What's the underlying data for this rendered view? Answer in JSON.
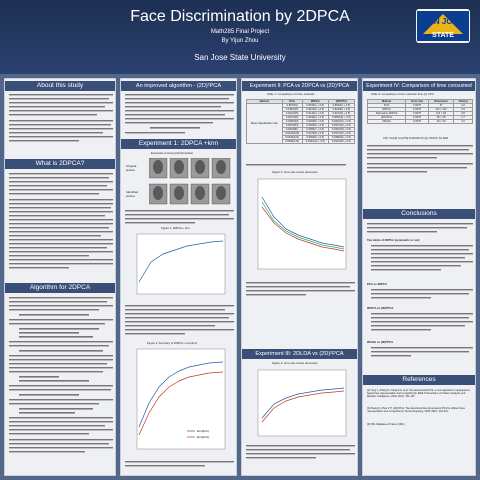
{
  "header": {
    "title": "Face Discrimination by 2DPCA",
    "course": "Math285 Final Project",
    "author": "By Yijun Zhou",
    "university": "San Jose State University",
    "logo": {
      "line1": "SAN JOSE",
      "line2": "STATE"
    }
  },
  "sections": {
    "about": "About this study",
    "what": "What is 2DPCA?",
    "algo": "Algorithm for 2DPCA",
    "improved": "An improved algorithm - (2D)²PCA",
    "exp1": "Experiment 1: 2DPCA +knn",
    "exp2": "Experiment II: PCA vs 2DPCA  vs (2D)²PCA",
    "exp3": "Experiment III: 2DLDA  vs (2D)²PCA",
    "exp4": "Experiment IV: Comparison of time consumed",
    "conclusions": "Conclusions",
    "references": "References"
  },
  "exp1": {
    "original_label": "Original\npicture",
    "identified_label": "Identified\npicture",
    "faces_caption": "Examples of wrong Discrimination",
    "fig1_caption": "Figure 1: 2DPCA + knn",
    "fig2_caption": "Figure 2: Accuracy of 2DPCA + knn(k=1)",
    "legend": [
      "knn(k=1)",
      "knn(k=3)"
    ]
  },
  "exp2": {
    "table_caption": "Table 1: Comparison of three methods",
    "headers": [
      "Method",
      "PCA",
      "2DPCA",
      "(2D)²PCA"
    ],
    "row_label": "Mean classification rate",
    "rows": [
      [
        "0.8972(9)",
        "0.8916(1 + 0.5)",
        "0.8690(3 + 0.5)"
      ],
      [
        "0.9160(16)",
        "0.9100(2 + 0.5)",
        "0.9230(6 + 0.5)"
      ],
      [
        "0.9222(25)",
        "0.9144(3 + 0.5)",
        "0.9272(9 + 0.5)"
      ],
      [
        "0.9276(36)",
        "0.9230(4 + 0.5)",
        "0.9260(11 + 0.5)"
      ],
      [
        "0.9336(49)",
        "0.9290(5 + 0.5)",
        "0.9292(14 + 0.5)"
      ],
      [
        "0.9370(64)",
        "0.9322(6 + 0.5)",
        "0.9370(16 + 0.5)"
      ],
      [
        "0.9403(81)",
        "0.9356(7 + 0.5)",
        "0.9333(18 + 0.5)"
      ],
      [
        "0.9416(100)",
        "0.9373(8 + 0.5)",
        "0.9372(20 + 0.5)"
      ],
      [
        "0.9440(121)",
        "0.9390(9 + 0.5)",
        "0.9389(22 + 0.5)"
      ],
      [
        "0.9483(144)",
        "0.9422(10 + 0.5)",
        "0.9410(25 + 0.5)"
      ]
    ],
    "fig_caption": "Figure 3: error rate versus dimension",
    "fig2_caption": "Figure 4: error rate versus dimension"
  },
  "exp4": {
    "table_caption": "Table 2: Comparison of five methods' time (s) CPU",
    "headers": [
      "Method",
      "Error rate",
      "Dimension",
      "Time(s)"
    ],
    "rows": [
      [
        "PCA",
        "0.0375",
        "47",
        "4.2"
      ],
      [
        "2DPCA",
        "0.0375",
        "112 × 112",
        "2.9"
      ],
      [
        "Alternative 2DPCA",
        "0.0375",
        "112 × 92",
        "2.8"
      ],
      [
        "(2D)²PCA",
        "0.0375",
        "25 × 25",
        "2.7"
      ],
      [
        "2DLDA",
        "0.0375",
        "23 × 23",
        "3.2"
      ]
    ],
    "cpu_note": "CPU: Intel(R) Core(TM) i5-3210M CPU @ 2.50GHz, 4G RAM"
  },
  "conclusion_heads": [
    "Two kinds of 2DPCA (symmetric or not)",
    "PCA vs 2DPCA",
    "2DPCA vs (2D)²PCA",
    "2DLDA vs (2D)²PCA"
  ],
  "references": [
    "[1] Yang J, Zhang D, Frangi A F, et al. Two-dimensional PCA: a new approach to appearance-based face representation and recognition[J]. IEEE Transactions on Pattern Analysis and Machine Intelligence, 2004, 26(1): 131-137.",
    "[2] Zhang D, Zhou Z H. (2D)²PCA: Two-directional two-dimensional PCA for efficient face representation and recognition[J]. Neurocomputing, 2005, 69(1): 224-231.",
    "[3] ORL Database of Faces (ORL)"
  ]
}
